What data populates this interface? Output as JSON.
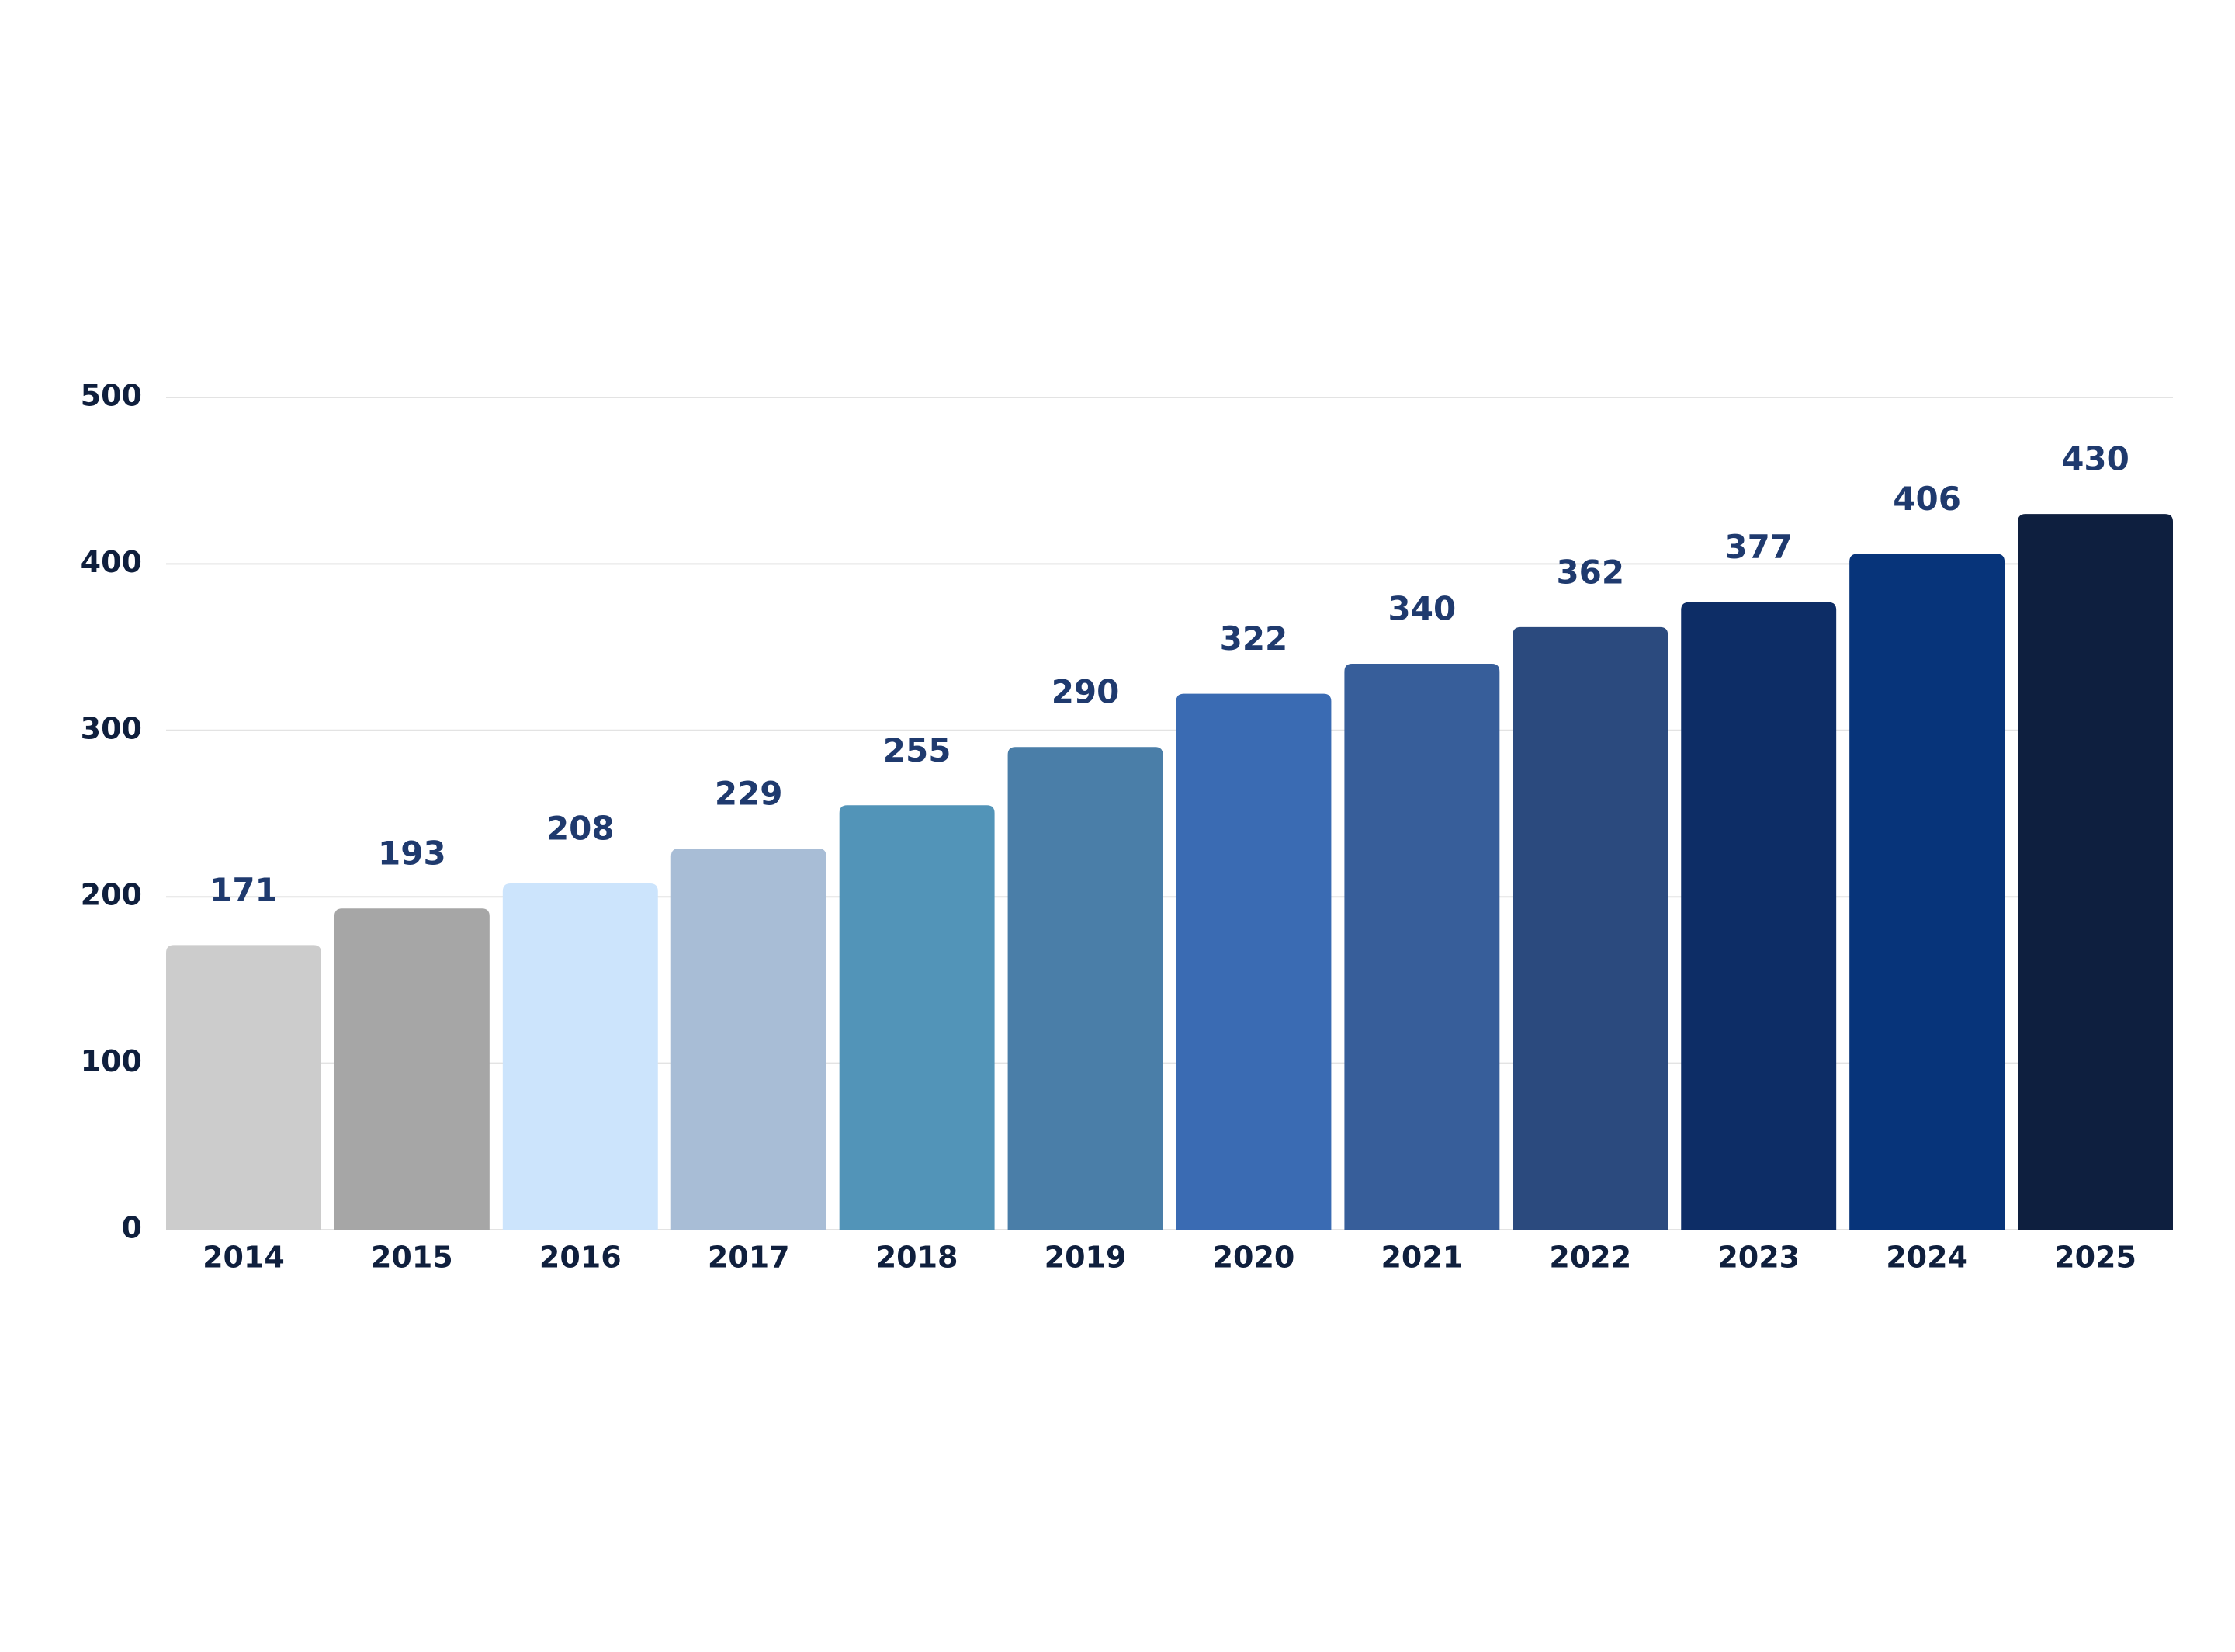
{
  "chart_data": {
    "type": "bar",
    "title": "",
    "xlabel": "",
    "ylabel": "",
    "categories": [
      "2014",
      "2015",
      "2016",
      "2017",
      "2018",
      "2019",
      "2020",
      "2021",
      "2022",
      "2023",
      "2024",
      "2025"
    ],
    "values": [
      171,
      193,
      208,
      229,
      255,
      290,
      322,
      340,
      362,
      377,
      406,
      430
    ],
    "ylim": [
      0,
      500
    ],
    "yticks": [
      0,
      100,
      200,
      300,
      400,
      500
    ],
    "grid": true,
    "legend": "none",
    "bar_colors": [
      "#cccccc",
      "#a6a6a6",
      "#cce4fc",
      "#a8bdd6",
      "#5294b8",
      "#4a7ea8",
      "#3a6bb3",
      "#375e9a",
      "#2b4a7e",
      "#0d2d66",
      "#07347a",
      "#0e1f3f"
    ],
    "colors": {
      "tick_text": "#0f1f3d",
      "data_label": "#1f3a6e",
      "grid": "#e3e3e3"
    }
  }
}
